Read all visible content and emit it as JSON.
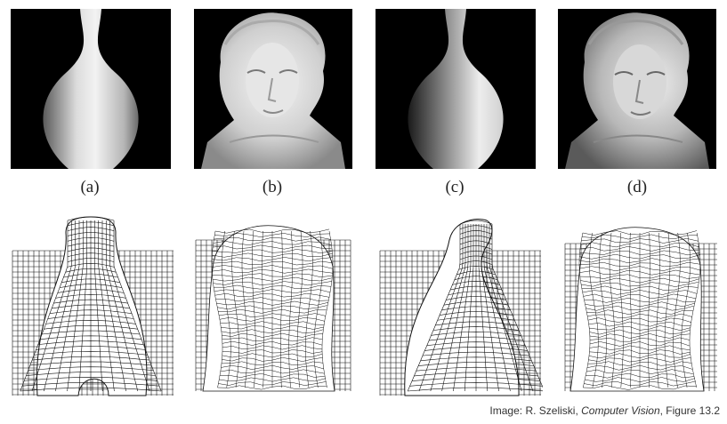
{
  "figure": {
    "captions": [
      "(a)",
      "(b)",
      "(c)",
      "(d)"
    ],
    "credit": {
      "prefix": "Image: R. Szeliski, ",
      "title": "Computer Vision",
      "suffix": ", Figure 13.2"
    }
  }
}
